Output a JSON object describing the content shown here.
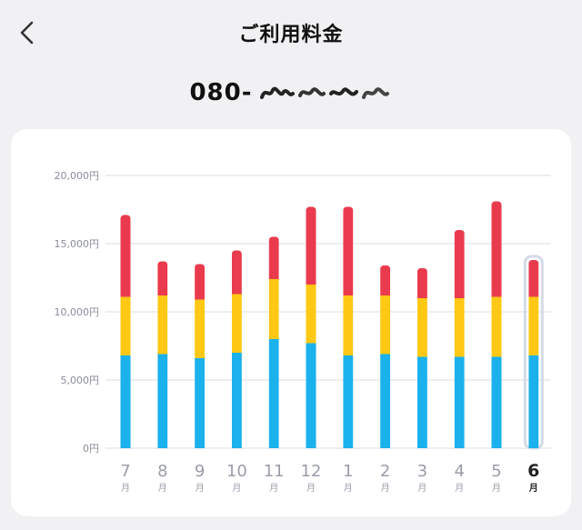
{
  "header": {
    "title": "ご利用料金",
    "back_icon": "chevron-left-icon"
  },
  "account": {
    "phone_prefix": "080-",
    "phone_masked": "blurred"
  },
  "colors": {
    "blue": "#1ab1ec",
    "yellow": "#ffc814",
    "red": "#ea3b4e",
    "grid": "#e3e4ea",
    "axis_text": "#8a8d99",
    "selected_outline": "#d4dae6"
  },
  "chart_data": {
    "type": "bar",
    "stacked": true,
    "categories": [
      "7",
      "8",
      "9",
      "10",
      "11",
      "12",
      "1",
      "2",
      "3",
      "4",
      "5",
      "6"
    ],
    "category_suffix": "月",
    "selected_index": 11,
    "series": [
      {
        "values": [
          6800,
          6900,
          6600,
          7000,
          8000,
          7700,
          6800,
          6900,
          6700,
          6700,
          6700,
          6800
        ]
      },
      {
        "values": [
          4300,
          4300,
          4300,
          4300,
          4400,
          4300,
          4400,
          4300,
          4300,
          4300,
          4400,
          4300
        ]
      },
      {
        "values": [
          6000,
          2500,
          2600,
          3200,
          3100,
          5700,
          6500,
          2200,
          2200,
          5000,
          7000,
          2700
        ]
      }
    ],
    "ylim": [
      0,
      20000
    ],
    "yticks": [
      "0円",
      "5,000円",
      "10,000円",
      "15,000円",
      "20,000円"
    ],
    "grid": true
  }
}
